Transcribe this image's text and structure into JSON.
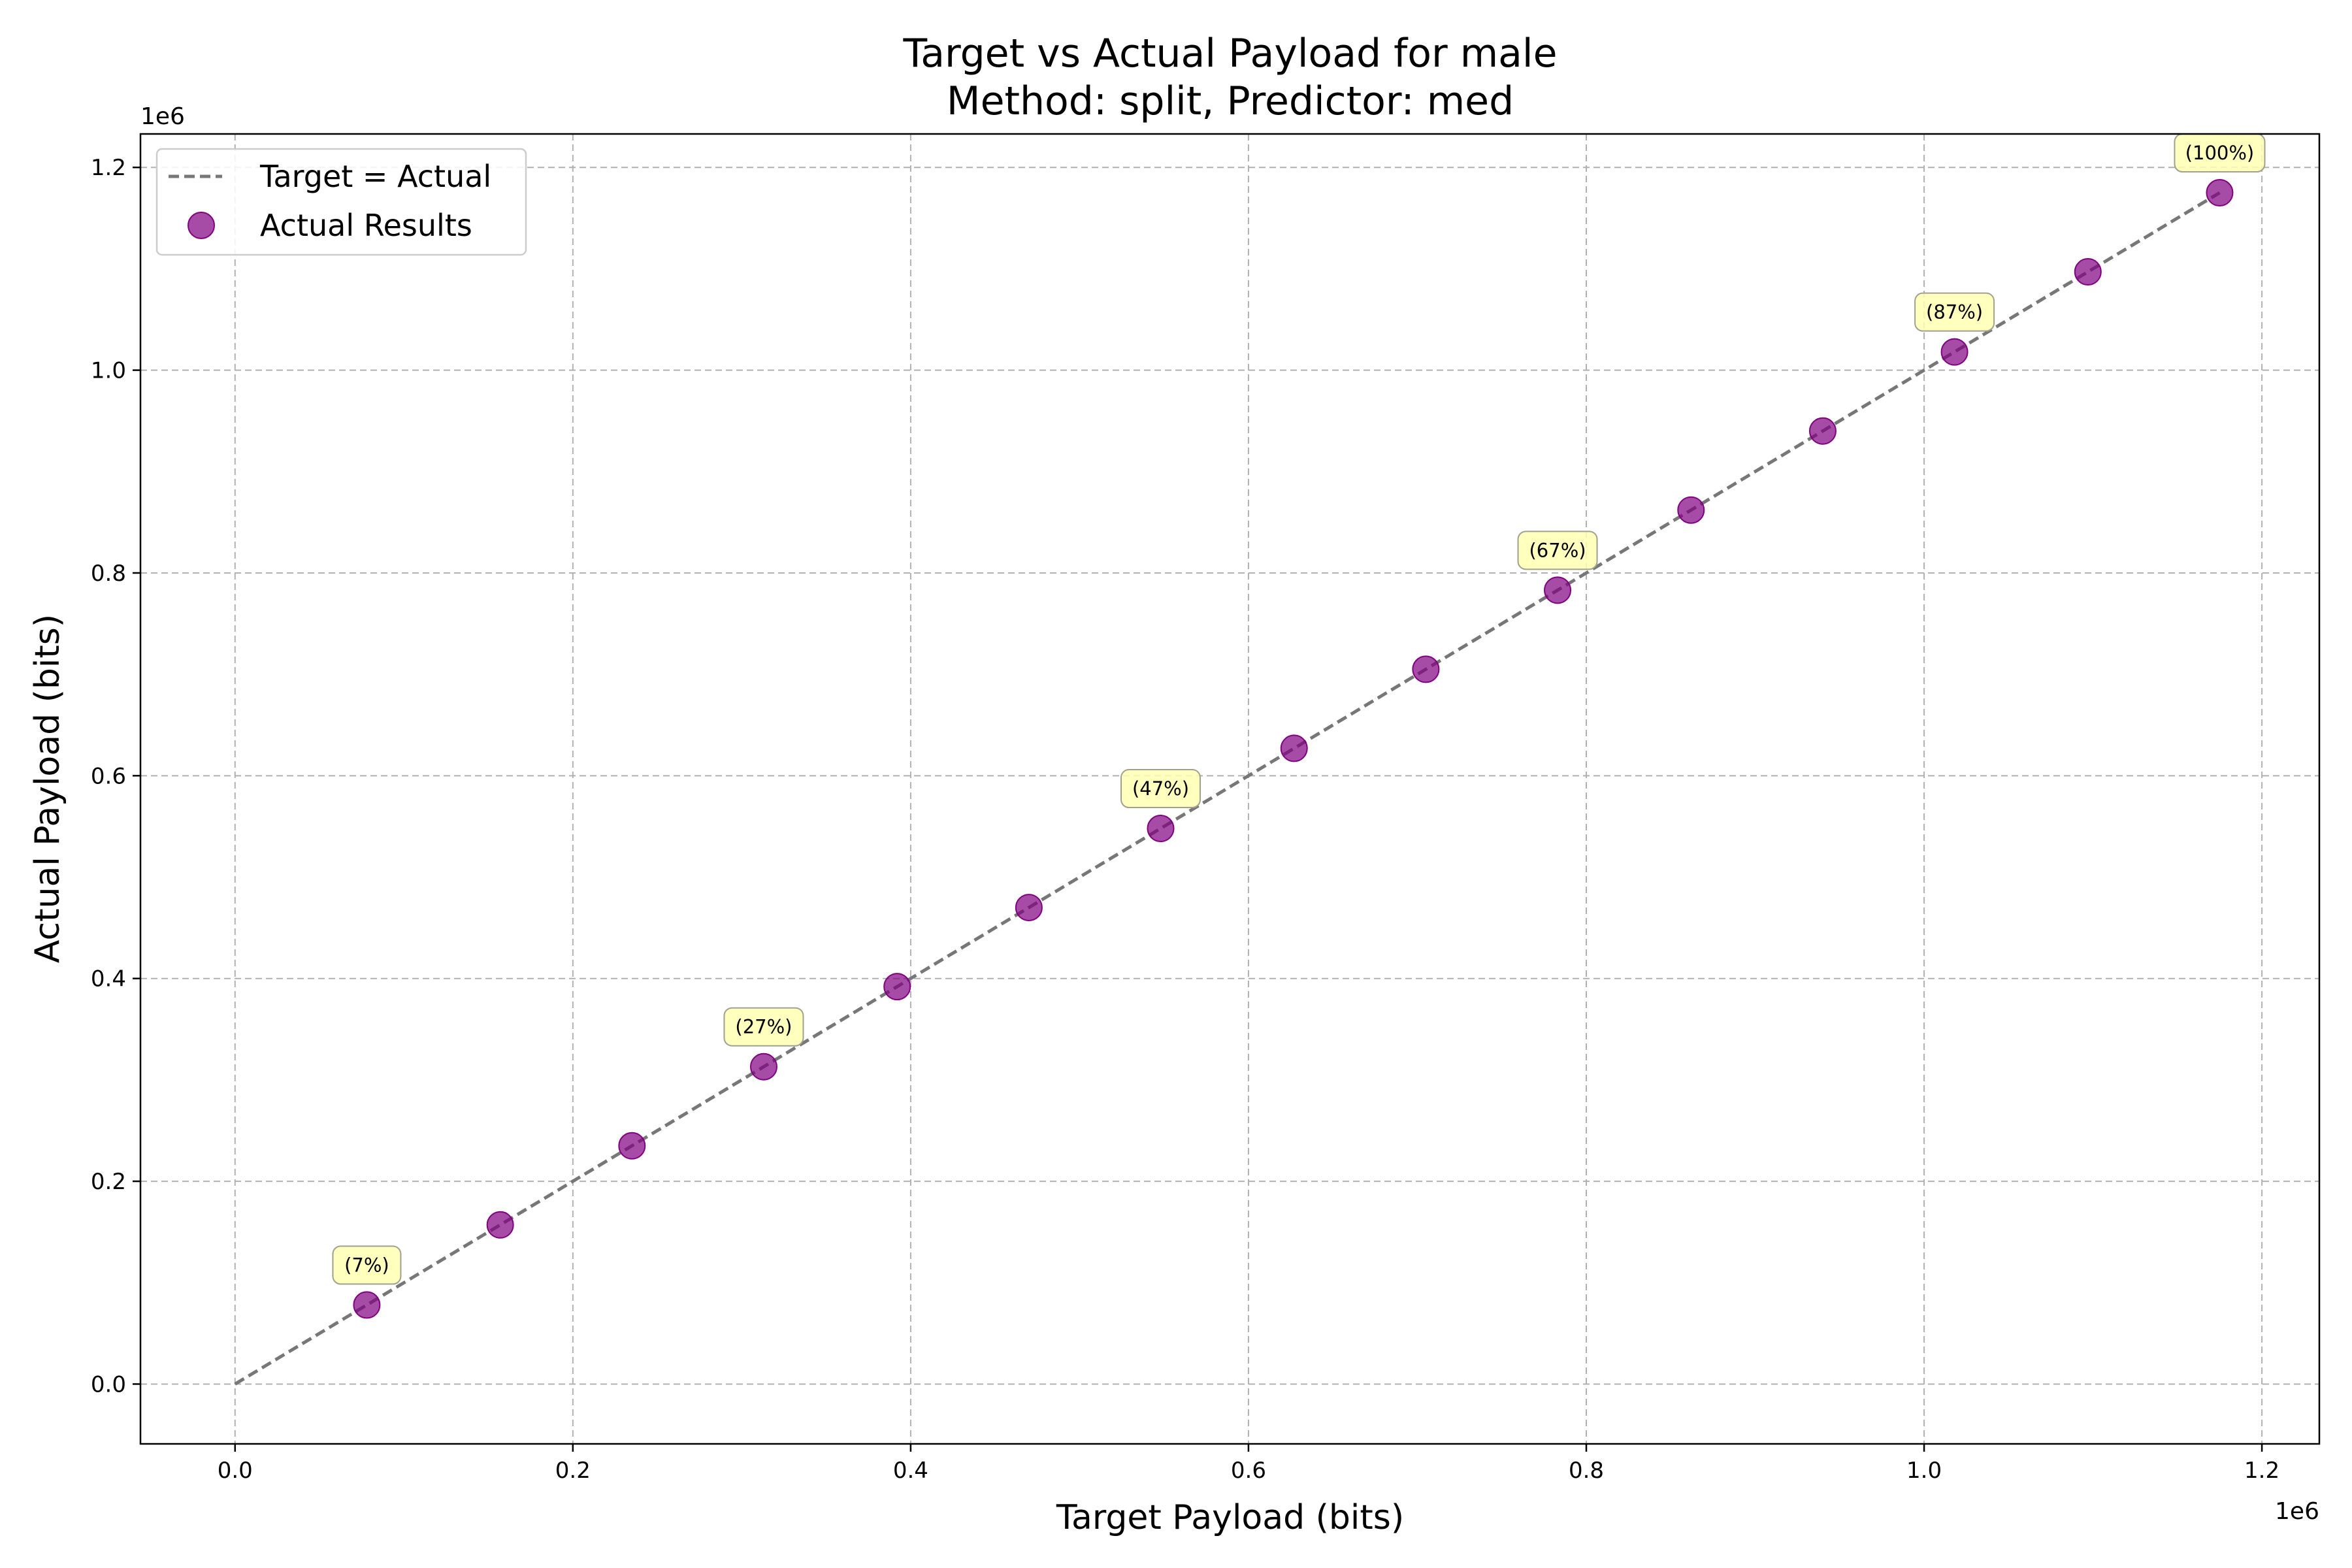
{
  "chart_data": {
    "type": "scatter",
    "title": "Target vs Actual Payload for male",
    "subtitle": "Method: split, Predictor: med",
    "xlabel": "Target Payload (bits)",
    "ylabel": "Actual Payload (bits)",
    "x_offset_label": "1e6",
    "y_offset_label": "1e6",
    "xlim": [
      -56000,
      1234000
    ],
    "ylim": [
      -59000,
      1233000
    ],
    "x_ticks": [
      0,
      200000,
      400000,
      600000,
      800000,
      1000000,
      1200000
    ],
    "y_ticks": [
      0,
      200000,
      400000,
      600000,
      800000,
      1000000,
      1200000
    ],
    "x_tick_labels": [
      "0.0",
      "0.2",
      "0.4",
      "0.6",
      "0.8",
      "1.0",
      "1.2"
    ],
    "y_tick_labels": [
      "0.0",
      "0.2",
      "0.4",
      "0.6",
      "0.8",
      "1.0",
      "1.2"
    ],
    "grid": true,
    "legend_position": "upper-left",
    "series": [
      {
        "name": "Target = Actual",
        "kind": "line",
        "style": "dashed",
        "color": "#777777",
        "x": [
          0,
          1175000
        ],
        "y": [
          0,
          1175000
        ]
      },
      {
        "name": "Actual Results",
        "kind": "scatter",
        "color": "#800080",
        "x": [
          78000,
          157000,
          235000,
          313000,
          392000,
          470000,
          548000,
          627000,
          705000,
          783000,
          862000,
          940000,
          1018000,
          1097000,
          1175000
        ],
        "y": [
          78000,
          157000,
          235000,
          313000,
          392000,
          470000,
          548000,
          627000,
          705000,
          783000,
          862000,
          940000,
          1018000,
          1097000,
          1175000
        ]
      }
    ],
    "annotations": [
      {
        "text": "(7%)",
        "x": 78000,
        "y": 78000
      },
      {
        "text": "(27%)",
        "x": 313000,
        "y": 313000
      },
      {
        "text": "(47%)",
        "x": 548000,
        "y": 548000
      },
      {
        "text": "(67%)",
        "x": 783000,
        "y": 783000
      },
      {
        "text": "(87%)",
        "x": 1018000,
        "y": 1018000
      },
      {
        "text": "(100%)",
        "x": 1175000,
        "y": 1175000
      }
    ],
    "colors": {
      "grid": "#b0b0b0",
      "annotation_fill": "#ffffb3",
      "annotation_edge": "#a0a090"
    }
  }
}
